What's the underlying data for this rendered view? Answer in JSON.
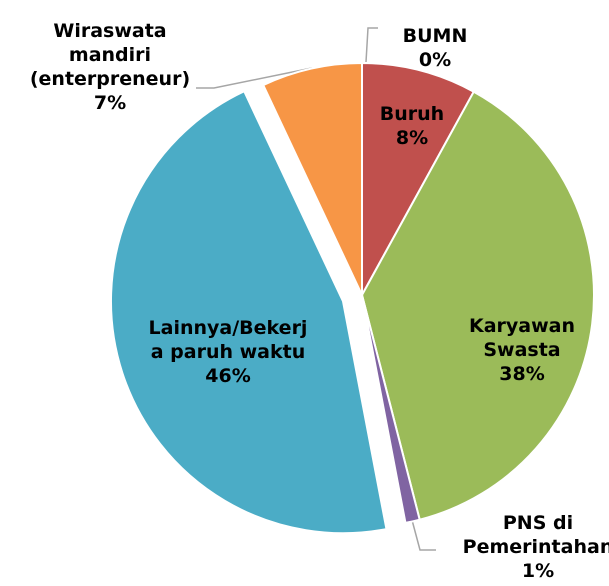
{
  "chart_data": {
    "type": "pie",
    "categories": [
      "BUMN",
      "Buruh",
      "Karyawan\nSwasta",
      "PNS di\nPemerintahan",
      "Lainnya/Bekerj\na paruh waktu",
      "Wiraswata\nmandiri\n(enterpreneur)"
    ],
    "values": [
      0,
      8,
      38,
      1,
      46,
      7
    ],
    "value_labels": [
      "0%",
      "8%",
      "38%",
      "1%",
      "46%",
      "7%"
    ],
    "colors": [
      "#4472c4",
      "#c0504d",
      "#9bbb59",
      "#8064a2",
      "#4bacc6",
      "#f79646"
    ],
    "exploded": [
      4
    ]
  }
}
